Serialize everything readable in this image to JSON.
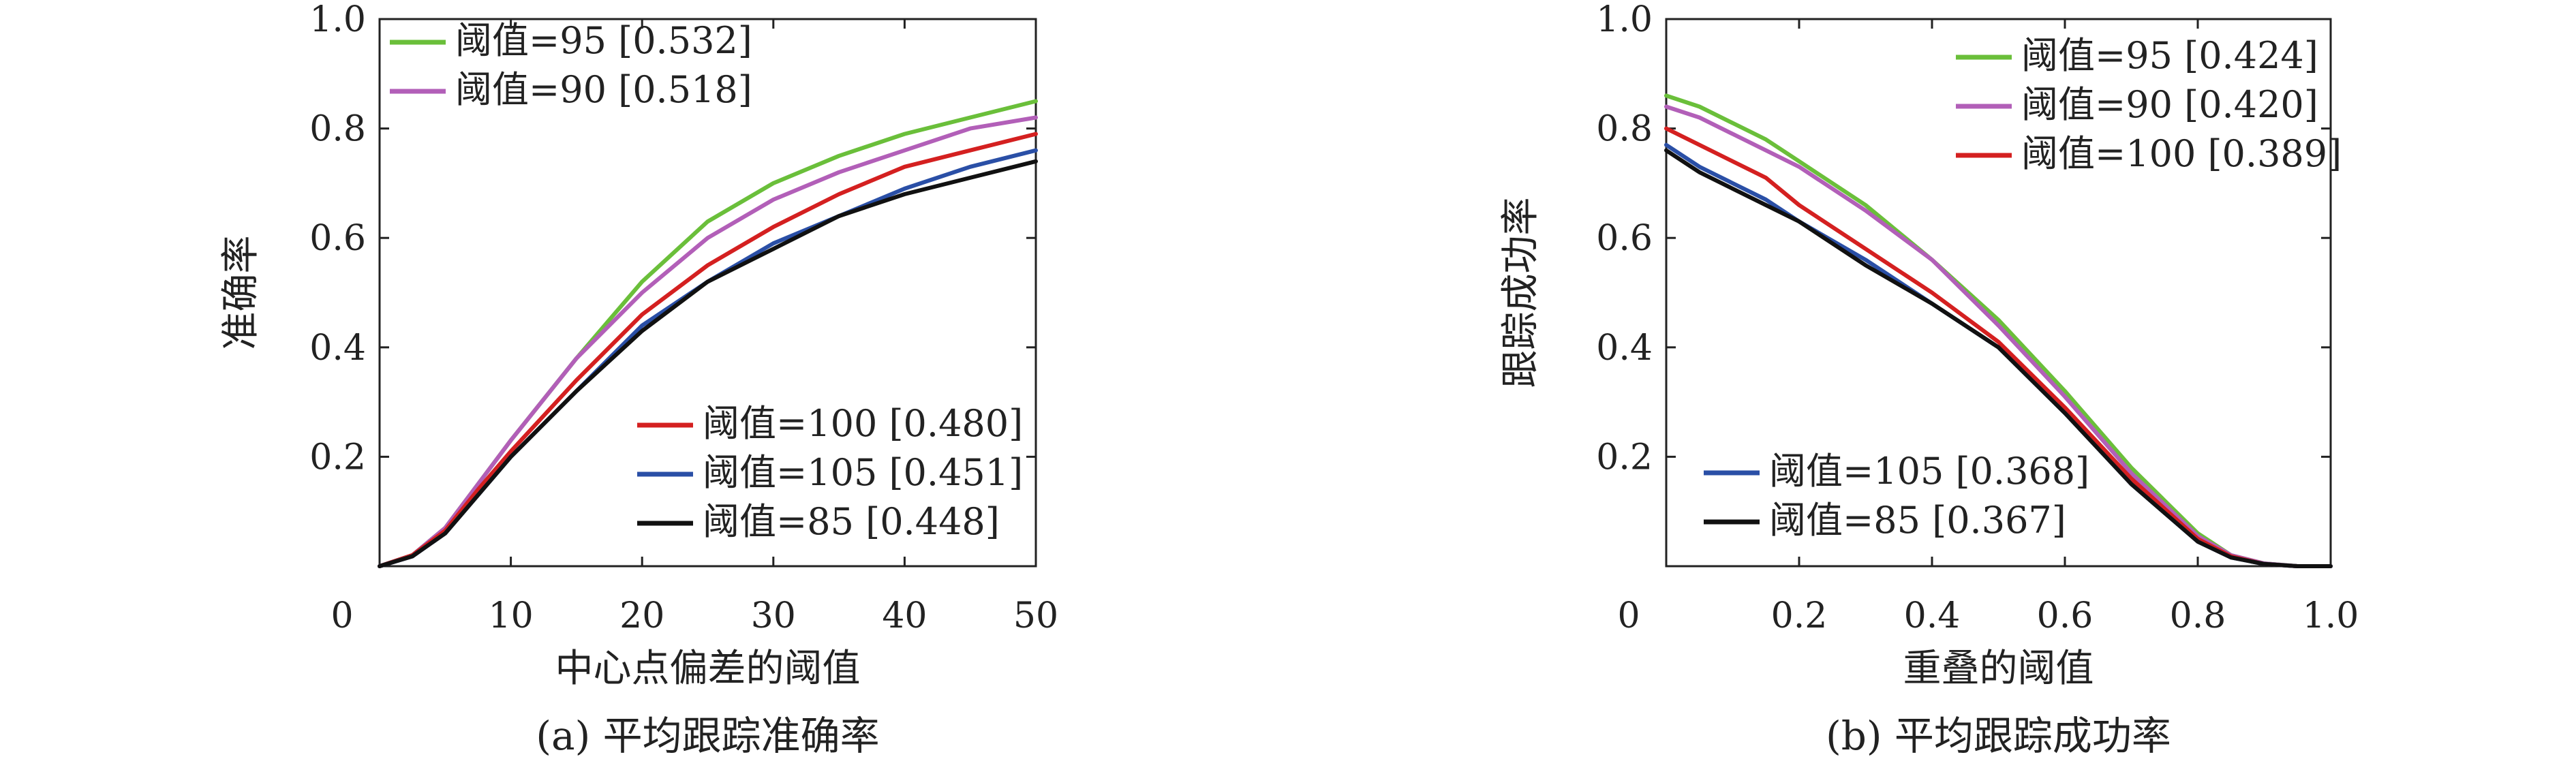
{
  "chart_data": [
    {
      "type": "line",
      "caption": "(a) 平均跟踪准确率",
      "xlabel": "中心点偏差的阈值",
      "ylabel": "准确率",
      "xlim": [
        0,
        50
      ],
      "ylim": [
        0,
        1
      ],
      "x_ticks": [
        "0",
        "10",
        "20",
        "30",
        "40",
        "50"
      ],
      "y_ticks": [
        "0.2",
        "0.4",
        "0.6",
        "0.8",
        "1.0"
      ],
      "grid": false,
      "legend_groups": [
        {
          "placement": "top-left",
          "entries": [
            "阈值=95 [0.532]",
            "阈值=90 [0.518]"
          ]
        },
        {
          "placement": "bottom-right",
          "entries": [
            "阈值=100 [0.480]",
            "阈值=105 [0.451]",
            "阈值=85 [0.448]"
          ]
        }
      ],
      "series": [
        {
          "name": "阈值=95 [0.532]",
          "color": "#6abf3a",
          "x": [
            0,
            2.5,
            5,
            7.5,
            10,
            15,
            20,
            25,
            30,
            35,
            40,
            45,
            50
          ],
          "y": [
            0.0,
            0.02,
            0.07,
            0.15,
            0.23,
            0.38,
            0.52,
            0.63,
            0.7,
            0.75,
            0.79,
            0.82,
            0.85
          ]
        },
        {
          "name": "阈值=90 [0.518]",
          "color": "#b25fb8",
          "x": [
            0,
            2.5,
            5,
            7.5,
            10,
            15,
            20,
            25,
            30,
            35,
            40,
            45,
            50
          ],
          "y": [
            0.0,
            0.02,
            0.07,
            0.15,
            0.23,
            0.38,
            0.5,
            0.6,
            0.67,
            0.72,
            0.76,
            0.8,
            0.82
          ]
        },
        {
          "name": "阈值=100 [0.480]",
          "color": "#d42020",
          "x": [
            0,
            2.5,
            5,
            7.5,
            10,
            15,
            20,
            25,
            30,
            35,
            40,
            45,
            50
          ],
          "y": [
            0.0,
            0.02,
            0.065,
            0.14,
            0.21,
            0.34,
            0.46,
            0.55,
            0.62,
            0.68,
            0.73,
            0.76,
            0.79
          ]
        },
        {
          "name": "阈值=105 [0.451]",
          "color": "#2a4fa6",
          "x": [
            0,
            2.5,
            5,
            7.5,
            10,
            15,
            20,
            25,
            30,
            35,
            40,
            45,
            50
          ],
          "y": [
            0.0,
            0.018,
            0.06,
            0.13,
            0.2,
            0.32,
            0.44,
            0.52,
            0.59,
            0.64,
            0.69,
            0.73,
            0.76
          ]
        },
        {
          "name": "阈值=85 [0.448]",
          "color": "#111111",
          "x": [
            0,
            2.5,
            5,
            7.5,
            10,
            15,
            20,
            25,
            30,
            35,
            40,
            45,
            50
          ],
          "y": [
            0.0,
            0.018,
            0.06,
            0.13,
            0.2,
            0.32,
            0.43,
            0.52,
            0.58,
            0.64,
            0.68,
            0.71,
            0.74
          ]
        }
      ]
    },
    {
      "type": "line",
      "caption": "(b) 平均跟踪成功率",
      "xlabel": "重叠的阈值",
      "ylabel": "跟踪成功率",
      "xlim": [
        0,
        1
      ],
      "ylim": [
        0,
        1
      ],
      "x_ticks": [
        "0",
        "0.2",
        "0.4",
        "0.6",
        "0.8",
        "1.0"
      ],
      "y_ticks": [
        "0.2",
        "0.4",
        "0.6",
        "0.8",
        "1.0"
      ],
      "grid": false,
      "legend_groups": [
        {
          "placement": "top-right",
          "entries": [
            "阈值=95 [0.424]",
            "阈值=90 [0.420]",
            "阈值=100 [0.389]"
          ]
        },
        {
          "placement": "bottom-left",
          "entries": [
            "阈值=105 [0.368]",
            "阈值=85 [0.367]"
          ]
        }
      ],
      "series": [
        {
          "name": "阈值=95 [0.424]",
          "color": "#6abf3a",
          "x": [
            0,
            0.05,
            0.1,
            0.15,
            0.2,
            0.3,
            0.4,
            0.5,
            0.6,
            0.7,
            0.8,
            0.85,
            0.9,
            0.95,
            1.0
          ],
          "y": [
            0.86,
            0.84,
            0.81,
            0.78,
            0.74,
            0.66,
            0.56,
            0.45,
            0.32,
            0.18,
            0.06,
            0.02,
            0.005,
            0.0,
            0.0
          ]
        },
        {
          "name": "阈值=90 [0.420]",
          "color": "#b25fb8",
          "x": [
            0,
            0.05,
            0.1,
            0.15,
            0.2,
            0.3,
            0.4,
            0.5,
            0.6,
            0.7,
            0.8,
            0.85,
            0.9,
            0.95,
            1.0
          ],
          "y": [
            0.84,
            0.82,
            0.79,
            0.76,
            0.73,
            0.65,
            0.56,
            0.44,
            0.31,
            0.17,
            0.055,
            0.02,
            0.005,
            0.0,
            0.0
          ]
        },
        {
          "name": "阈值=100 [0.389]",
          "color": "#d42020",
          "x": [
            0,
            0.05,
            0.1,
            0.15,
            0.2,
            0.3,
            0.4,
            0.5,
            0.6,
            0.7,
            0.8,
            0.85,
            0.9,
            0.95,
            1.0
          ],
          "y": [
            0.8,
            0.77,
            0.74,
            0.71,
            0.66,
            0.58,
            0.5,
            0.41,
            0.29,
            0.16,
            0.05,
            0.018,
            0.004,
            0.0,
            0.0
          ]
        },
        {
          "name": "阈值=105 [0.368]",
          "color": "#2a4fa6",
          "x": [
            0,
            0.05,
            0.1,
            0.15,
            0.2,
            0.3,
            0.4,
            0.5,
            0.6,
            0.7,
            0.8,
            0.85,
            0.9,
            0.95,
            1.0
          ],
          "y": [
            0.77,
            0.73,
            0.7,
            0.67,
            0.63,
            0.56,
            0.48,
            0.4,
            0.28,
            0.15,
            0.045,
            0.016,
            0.004,
            0.0,
            0.0
          ]
        },
        {
          "name": "阈值=85 [0.367]",
          "color": "#111111",
          "x": [
            0,
            0.05,
            0.1,
            0.15,
            0.2,
            0.3,
            0.4,
            0.5,
            0.6,
            0.7,
            0.8,
            0.85,
            0.9,
            0.95,
            1.0
          ],
          "y": [
            0.76,
            0.72,
            0.69,
            0.66,
            0.63,
            0.55,
            0.48,
            0.4,
            0.28,
            0.15,
            0.045,
            0.016,
            0.004,
            0.0,
            0.0
          ]
        }
      ]
    }
  ]
}
